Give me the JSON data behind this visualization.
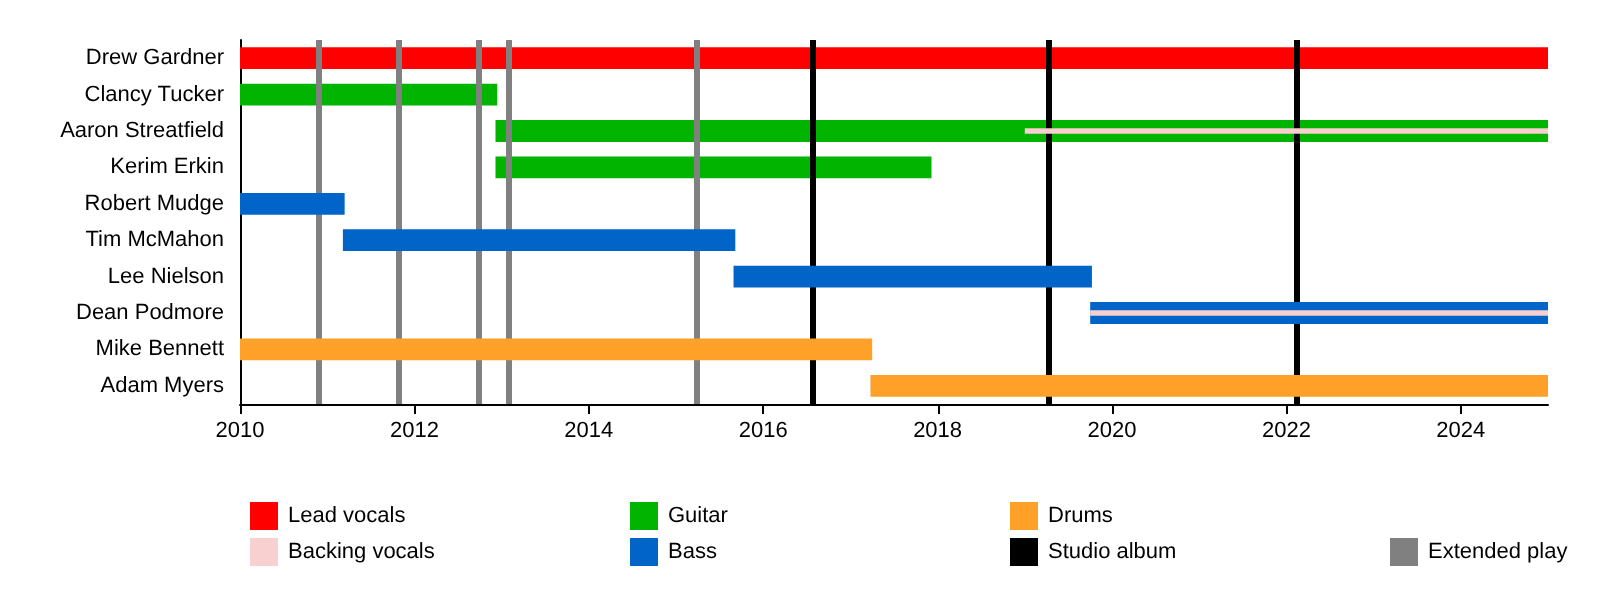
{
  "chart_data": {
    "type": "bar",
    "orientation": "horizontal",
    "categories": [
      "Drew Gardner",
      "Clancy Tucker",
      "Aaron Streatfield",
      "Kerim Erkin",
      "Robert Mudge",
      "Tim McMahon",
      "Lee Nielson",
      "Dean Podmore",
      "Mike Bennett",
      "Adam Myers"
    ],
    "series": [
      {
        "name": "Lead vocals",
        "color": "#ff0000",
        "base": [
          2010,
          null,
          null,
          null,
          null,
          null,
          null,
          null,
          null,
          null
        ],
        "values": [
          15,
          null,
          null,
          null,
          null,
          null,
          null,
          null,
          null,
          null
        ]
      },
      {
        "name": "Guitar",
        "color": "#00b400",
        "base": [
          null,
          2010,
          2012.93,
          2012.93,
          null,
          null,
          null,
          null,
          null,
          null
        ],
        "values": [
          null,
          2.95,
          12.07,
          5.0,
          null,
          null,
          null,
          null,
          null,
          null
        ]
      },
      {
        "name": "Bass",
        "color": "#0064c8",
        "base": [
          null,
          null,
          null,
          null,
          2010,
          2011.18,
          2015.66,
          2019.75,
          null,
          null
        ],
        "values": [
          null,
          null,
          null,
          null,
          1.2,
          4.5,
          4.11,
          5.25,
          null,
          null
        ]
      },
      {
        "name": "Drums",
        "color": "#ffa028",
        "base": [
          null,
          null,
          null,
          null,
          null,
          null,
          null,
          null,
          2010,
          2017.23
        ],
        "values": [
          null,
          null,
          null,
          null,
          null,
          null,
          null,
          null,
          7.25,
          7.77
        ]
      },
      {
        "name": "Backing vocals",
        "color": "#f8d0d0",
        "base": [
          null,
          null,
          2019.0,
          null,
          null,
          null,
          null,
          2019.75,
          null,
          null
        ],
        "values": [
          null,
          null,
          6.0,
          null,
          null,
          null,
          null,
          5.25,
          null,
          null
        ]
      }
    ],
    "xlim": [
      2010,
      2025
    ],
    "xticks": [
      2010,
      2012,
      2014,
      2016,
      2018,
      2020,
      2022,
      2024
    ],
    "ref_lines": [
      {
        "axis": "x",
        "value": 2016.57,
        "label": "Studio album",
        "color": "#000000"
      },
      {
        "axis": "x",
        "value": 2019.27,
        "color": "#000000"
      },
      {
        "axis": "x",
        "value": 2022.11,
        "color": "#000000"
      },
      {
        "axis": "x",
        "value": 2010.91,
        "label": "Extended play",
        "color": "#808080"
      },
      {
        "axis": "x",
        "value": 2011.82,
        "color": "#808080"
      },
      {
        "axis": "x",
        "value": 2012.73,
        "color": "#808080"
      },
      {
        "axis": "x",
        "value": 2013.07,
        "color": "#808080"
      },
      {
        "axis": "x",
        "value": 2015.23,
        "color": "#808080"
      }
    ],
    "grid": false,
    "legend": "bottom"
  }
}
